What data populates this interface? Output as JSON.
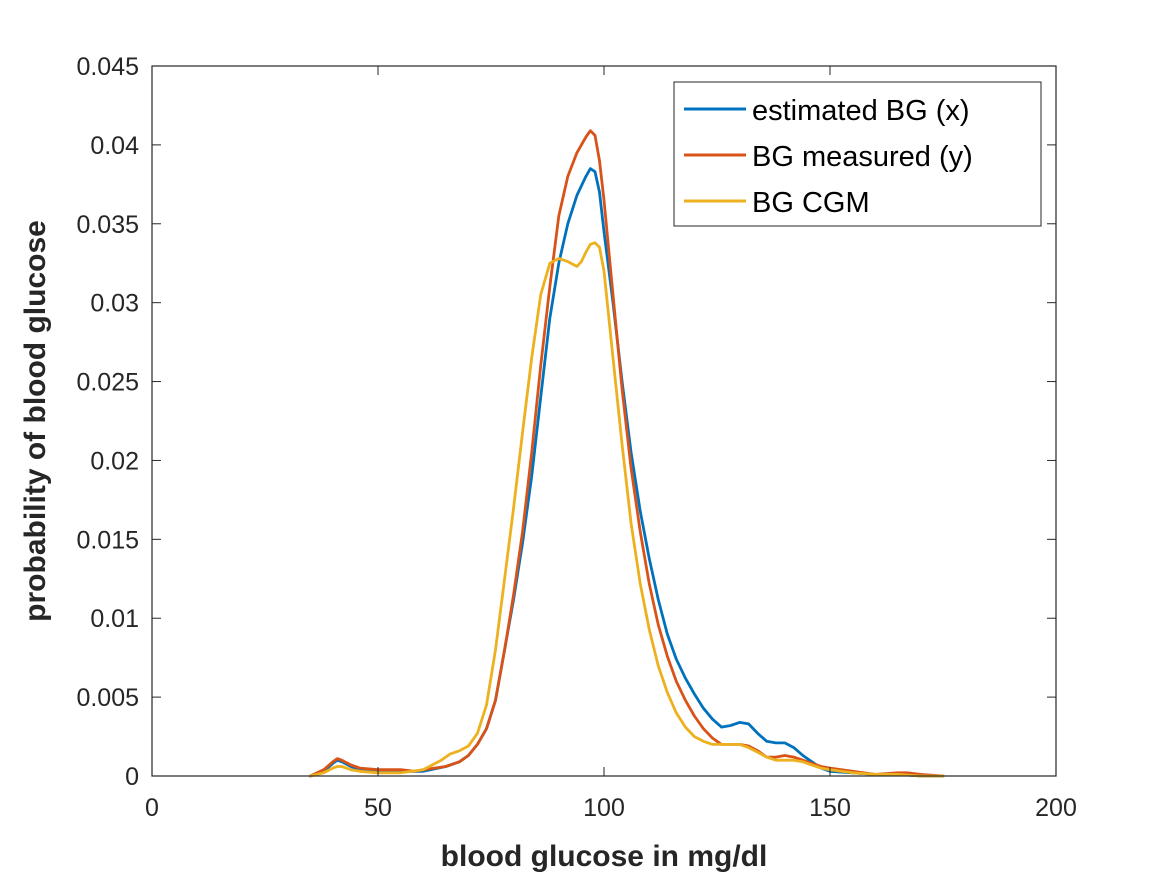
{
  "chart_data": {
    "type": "line",
    "title": "",
    "xlabel": "blood glucose in mg/dl",
    "ylabel": "probability of blood glucose",
    "xlim": [
      0,
      200
    ],
    "ylim": [
      0,
      0.045
    ],
    "xticks": [
      0,
      50,
      100,
      150,
      200
    ],
    "xtick_labels": [
      "0",
      "50",
      "100",
      "150",
      "200"
    ],
    "yticks": [
      0,
      0.005,
      0.01,
      0.015,
      0.02,
      0.025,
      0.03,
      0.035,
      0.04,
      0.045
    ],
    "ytick_labels": [
      "0",
      "0.005",
      "0.01",
      "0.015",
      "0.02",
      "0.025",
      "0.03",
      "0.035",
      "0.04",
      "0.045"
    ],
    "grid": false,
    "legend_position": "top-right",
    "series": [
      {
        "name": "estimated BG (x)",
        "color": "#0072BD",
        "x": [
          35,
          38,
          40,
          41,
          42,
          44,
          46,
          50,
          55,
          60,
          65,
          68,
          70,
          72,
          74,
          76,
          78,
          80,
          82,
          84,
          86,
          88,
          90,
          92,
          94,
          96,
          97,
          98,
          99,
          100,
          102,
          104,
          106,
          108,
          110,
          112,
          114,
          116,
          118,
          120,
          122,
          124,
          126,
          128,
          130,
          132,
          134,
          136,
          138,
          140,
          142,
          144,
          146,
          148,
          150,
          155,
          160,
          165,
          170,
          175
        ],
        "values": [
          0.0,
          0.0003,
          0.0008,
          0.001,
          0.0009,
          0.0006,
          0.0004,
          0.0003,
          0.0003,
          0.0003,
          0.0006,
          0.0009,
          0.0013,
          0.002,
          0.003,
          0.0048,
          0.008,
          0.0112,
          0.0148,
          0.019,
          0.024,
          0.029,
          0.0325,
          0.035,
          0.0368,
          0.038,
          0.0385,
          0.0383,
          0.037,
          0.0345,
          0.03,
          0.025,
          0.0205,
          0.0168,
          0.0138,
          0.0112,
          0.009,
          0.0074,
          0.0062,
          0.0052,
          0.0043,
          0.0036,
          0.0031,
          0.0032,
          0.0034,
          0.0033,
          0.0027,
          0.0022,
          0.0021,
          0.0021,
          0.0018,
          0.0013,
          0.0009,
          0.0005,
          0.0003,
          0.0002,
          0.0001,
          0.0001,
          0.0,
          0.0
        ]
      },
      {
        "name": "BG measured (y)",
        "color": "#D95319",
        "x": [
          35,
          38,
          40,
          41,
          42,
          44,
          46,
          50,
          55,
          58,
          60,
          65,
          68,
          70,
          72,
          74,
          76,
          78,
          80,
          82,
          84,
          86,
          88,
          90,
          92,
          94,
          96,
          97,
          98,
          99,
          100,
          102,
          104,
          106,
          108,
          110,
          112,
          114,
          116,
          118,
          120,
          122,
          124,
          126,
          128,
          130,
          132,
          134,
          136,
          138,
          140,
          142,
          144,
          146,
          148,
          150,
          155,
          160,
          165,
          167,
          170,
          175
        ],
        "values": [
          0.0,
          0.0004,
          0.0009,
          0.0011,
          0.001,
          0.0007,
          0.0005,
          0.0004,
          0.0004,
          0.0003,
          0.0004,
          0.0006,
          0.0009,
          0.0013,
          0.002,
          0.003,
          0.0048,
          0.008,
          0.0115,
          0.0155,
          0.0205,
          0.026,
          0.031,
          0.0355,
          0.038,
          0.0395,
          0.0405,
          0.0409,
          0.0406,
          0.039,
          0.0365,
          0.0305,
          0.0245,
          0.0195,
          0.0155,
          0.0122,
          0.0096,
          0.0076,
          0.006,
          0.0048,
          0.0038,
          0.003,
          0.0024,
          0.002,
          0.002,
          0.002,
          0.0019,
          0.0016,
          0.0012,
          0.0012,
          0.0013,
          0.0012,
          0.001,
          0.0008,
          0.0006,
          0.0005,
          0.0003,
          0.0001,
          0.0002,
          0.0002,
          0.0001,
          0.0
        ]
      },
      {
        "name": "BG CGM",
        "color": "#EDB120",
        "x": [
          35,
          38,
          40,
          41,
          42,
          44,
          46,
          50,
          55,
          60,
          62,
          64,
          66,
          68,
          70,
          72,
          74,
          76,
          78,
          80,
          82,
          84,
          86,
          88,
          90,
          92,
          94,
          95,
          96,
          97,
          98,
          99,
          100,
          102,
          104,
          106,
          108,
          110,
          112,
          114,
          116,
          118,
          120,
          122,
          124,
          126,
          128,
          130,
          132,
          134,
          136,
          138,
          140,
          142,
          144,
          146,
          148,
          150,
          155,
          160,
          165,
          170,
          175
        ],
        "values": [
          0.0,
          0.0002,
          0.0005,
          0.0006,
          0.0006,
          0.0004,
          0.0003,
          0.0002,
          0.0002,
          0.0004,
          0.0007,
          0.001,
          0.0014,
          0.0016,
          0.0019,
          0.0027,
          0.0045,
          0.008,
          0.0125,
          0.017,
          0.0218,
          0.0265,
          0.0305,
          0.0325,
          0.0328,
          0.0326,
          0.0323,
          0.0326,
          0.0332,
          0.0337,
          0.0338,
          0.0335,
          0.032,
          0.0265,
          0.021,
          0.016,
          0.0122,
          0.0093,
          0.007,
          0.0053,
          0.004,
          0.0031,
          0.0025,
          0.0022,
          0.002,
          0.002,
          0.002,
          0.002,
          0.0018,
          0.0015,
          0.0012,
          0.001,
          0.001,
          0.001,
          0.0009,
          0.0007,
          0.0005,
          0.0004,
          0.0002,
          0.0001,
          0.0001,
          0.0,
          0.0
        ]
      }
    ]
  }
}
